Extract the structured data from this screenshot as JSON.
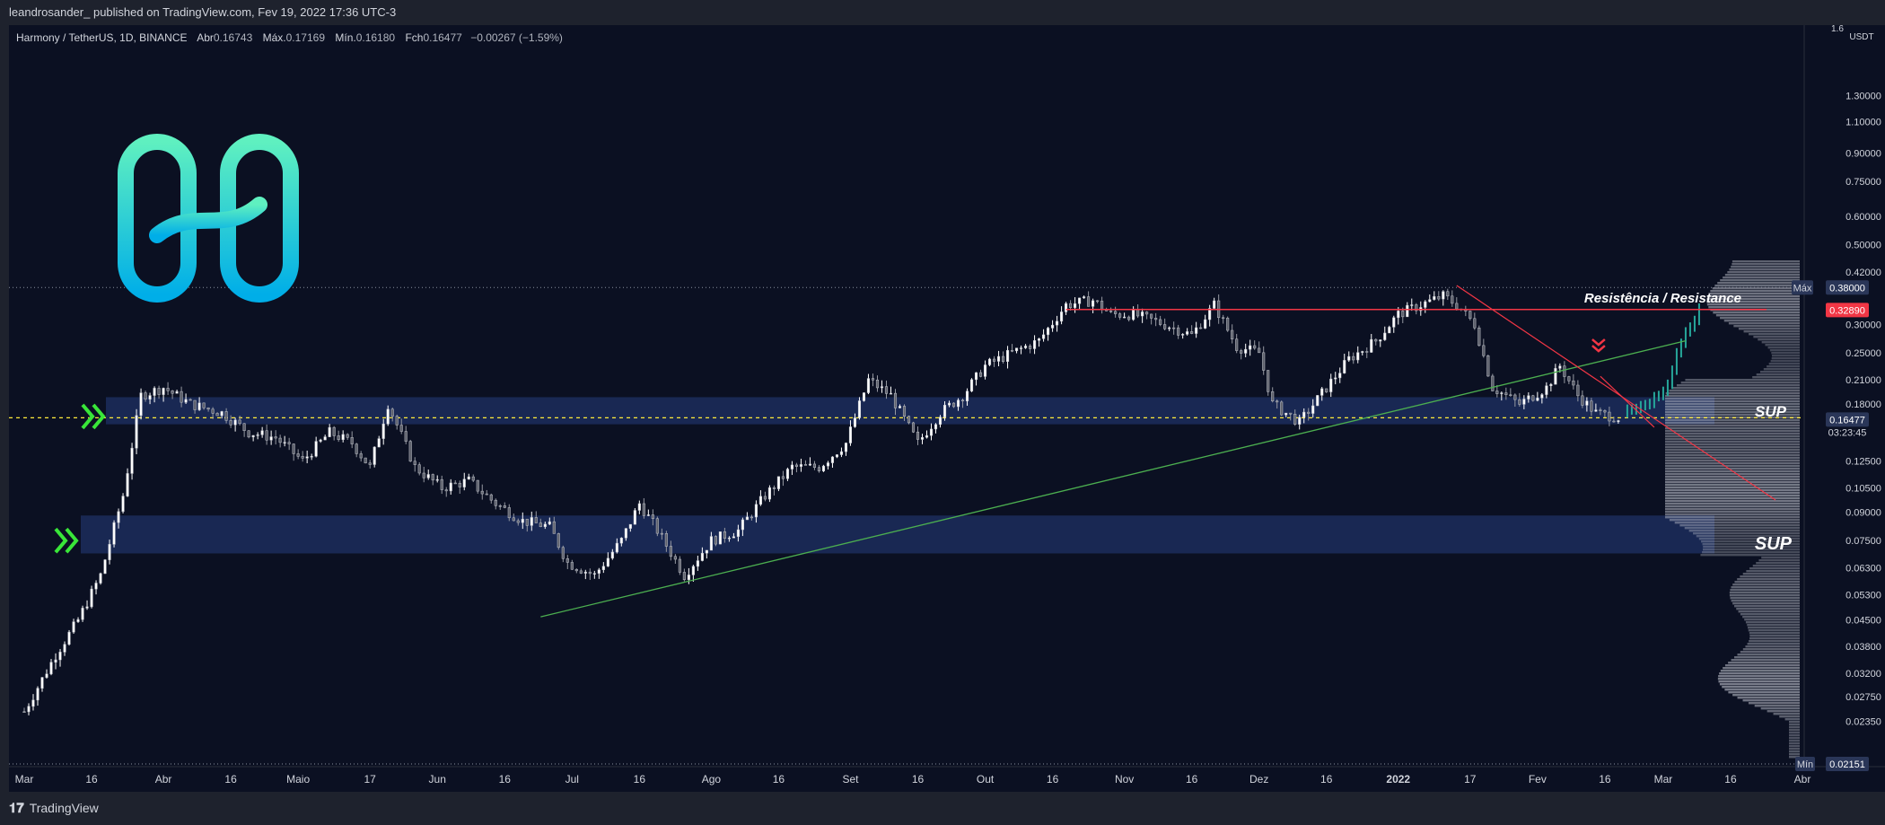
{
  "publication": {
    "text": "leandrosander_ published on TradingView.com, Fev 19, 2022 17:36 UTC-3"
  },
  "legend": {
    "symbol": "Harmony / TetherUS, 1D, BINANCE",
    "o_label": "Abr",
    "o_value": "0.16743",
    "h_label": "Máx.",
    "h_value": "0.17169",
    "l_label": "Mín.",
    "l_value": "0.16180",
    "c_label": "Fch",
    "c_value": "0.16477",
    "change": "−0.00267 (−1.59%)"
  },
  "footer": {
    "brand": "TradingView"
  },
  "colors": {
    "background": "#0b1022",
    "zone": "#1c2d5c",
    "support_line": "#ffeb3b",
    "resistance_line": "#f23645",
    "trend_line": "#4caf50",
    "arrows": "#39e639",
    "logo_top": "#5ff0c0",
    "logo_bottom": "#00aee8",
    "max_badge": "#2a3658",
    "price_badge": "#f23645",
    "current_badge": "#2a3658"
  },
  "chart_data": {
    "type": "candlestick",
    "title": "",
    "currency": "USDT",
    "yscale": "log",
    "ylim": [
      0.022,
      1.7
    ],
    "y_ticks": [
      "1.30000",
      "1.10000",
      "0.90000",
      "0.75000",
      "0.60000",
      "0.50000",
      "0.42000",
      "0.30000",
      "0.25000",
      "0.21000",
      "0.18000",
      "0.12500",
      "0.10500",
      "0.09000",
      "0.07500",
      "0.06300",
      "0.05300",
      "0.04500",
      "0.03800",
      "0.03200",
      "0.02750",
      "0.02350"
    ],
    "x_ticks": [
      "Mar",
      "16",
      "Abr",
      "16",
      "Maio",
      "17",
      "Jun",
      "16",
      "Jul",
      "16",
      "Ago",
      "16",
      "Set",
      "16",
      "Out",
      "16",
      "Nov",
      "16",
      "Dez",
      "16",
      "2022",
      "17",
      "Fev",
      "16",
      "Mar",
      "16",
      "Abr"
    ],
    "x_ticks_bold": [
      "2022"
    ],
    "series": [
      {
        "kind": "close_path",
        "dates": [
          "2021-03-01",
          "2021-03-08",
          "2021-03-13",
          "2021-03-18",
          "2021-03-23",
          "2021-03-27",
          "2021-04-01",
          "2021-04-07",
          "2021-04-14",
          "2021-04-20",
          "2021-04-26",
          "2021-05-02",
          "2021-05-08",
          "2021-05-13",
          "2021-05-17",
          "2021-05-21",
          "2021-05-27",
          "2021-06-02",
          "2021-06-08",
          "2021-06-14",
          "2021-06-20",
          "2021-06-26",
          "2021-06-30",
          "2021-07-06",
          "2021-07-12",
          "2021-07-16",
          "2021-07-20",
          "2021-07-26",
          "2021-08-01",
          "2021-08-07",
          "2021-08-13",
          "2021-08-19",
          "2021-08-25",
          "2021-08-31",
          "2021-09-05",
          "2021-09-10",
          "2021-09-16",
          "2021-09-21",
          "2021-09-26",
          "2021-10-01",
          "2021-10-07",
          "2021-10-13",
          "2021-10-19",
          "2021-10-25",
          "2021-10-29",
          "2021-11-03",
          "2021-11-10",
          "2021-11-16",
          "2021-11-21",
          "2021-11-26",
          "2021-12-01",
          "2021-12-04",
          "2021-12-10",
          "2021-12-16",
          "2021-12-21",
          "2021-12-27",
          "2022-01-01",
          "2022-01-06",
          "2022-01-11",
          "2022-01-14",
          "2022-01-18",
          "2022-01-22",
          "2022-01-28",
          "2022-02-03",
          "2022-02-06",
          "2022-02-10",
          "2022-02-14",
          "2022-02-19"
        ],
        "close": [
          0.025,
          0.036,
          0.045,
          0.06,
          0.1,
          0.19,
          0.2,
          0.18,
          0.17,
          0.15,
          0.145,
          0.125,
          0.15,
          0.14,
          0.12,
          0.18,
          0.12,
          0.105,
          0.11,
          0.095,
          0.085,
          0.082,
          0.065,
          0.06,
          0.075,
          0.095,
          0.08,
          0.06,
          0.075,
          0.08,
          0.1,
          0.12,
          0.12,
          0.14,
          0.21,
          0.19,
          0.14,
          0.17,
          0.19,
          0.23,
          0.25,
          0.27,
          0.34,
          0.35,
          0.32,
          0.32,
          0.3,
          0.28,
          0.34,
          0.26,
          0.25,
          0.18,
          0.16,
          0.2,
          0.24,
          0.27,
          0.32,
          0.34,
          0.36,
          0.34,
          0.3,
          0.2,
          0.18,
          0.2,
          0.23,
          0.19,
          0.17,
          0.165
        ]
      },
      {
        "kind": "projection",
        "dates": [
          "2022-02-21",
          "2022-02-26",
          "2022-03-02",
          "2022-03-05",
          "2022-03-09"
        ],
        "values": [
          0.17,
          0.18,
          0.2,
          0.27,
          0.33
        ]
      }
    ],
    "zones": [
      {
        "label": "SUP",
        "low": 0.158,
        "high": 0.188
      },
      {
        "label": "SUP",
        "low": 0.069,
        "high": 0.088
      }
    ],
    "lines": [
      {
        "name": "resistance",
        "label": "Resistência / Resistance",
        "value": 0.33,
        "from": "2021-10-25",
        "to": "2022-03-16"
      },
      {
        "name": "trend",
        "points": [
          [
            "2021-06-26",
            0.047
          ],
          [
            "2022-03-05",
            0.27
          ]
        ]
      },
      {
        "name": "descending",
        "points": [
          [
            "2022-01-13",
            0.385
          ],
          [
            "2022-03-20",
            0.1
          ]
        ]
      },
      {
        "name": "current-price",
        "value": 0.16477
      }
    ],
    "markers": [
      {
        "type": "arrow-right",
        "date": "2021-03-24",
        "value": 0.17
      },
      {
        "type": "arrow-right",
        "date": "2021-03-13",
        "value": 0.078
      },
      {
        "type": "arrow-down",
        "date": "2022-02-14",
        "value": 0.24
      }
    ],
    "price_labels": {
      "max_label": "Máx",
      "max_value": "0.38000",
      "resistance_value": "0.32890",
      "current_value": "0.16477",
      "countdown": "03:23:45",
      "min_label": "Mín",
      "min_value": "0.02151",
      "top_partial": "1.6"
    }
  }
}
